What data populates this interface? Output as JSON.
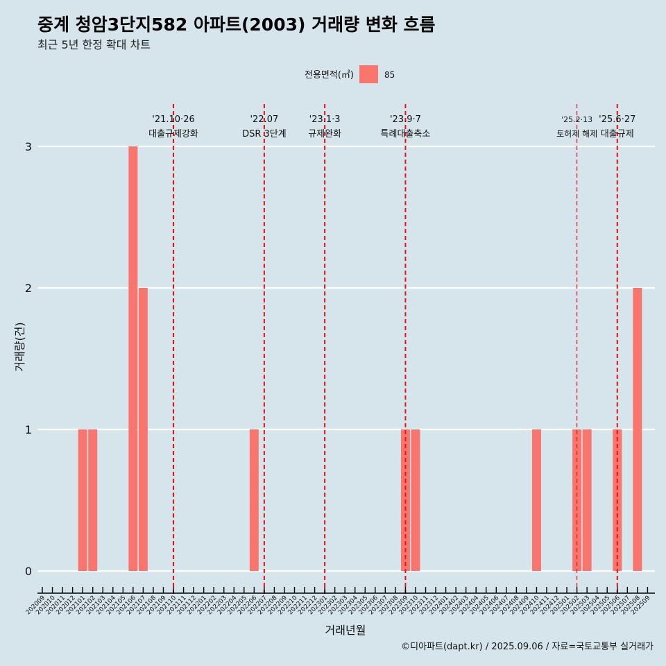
{
  "chart_data": {
    "type": "bar",
    "title": "중계 청암3단지582 아파트(2003) 거래량 변화 흐름",
    "subtitle": "최근 5년 한정 확대 차트",
    "xlabel": "거래년월",
    "ylabel": "거래량(건)",
    "caption": "©디아파트(dapt.kr) / 2025.09.06 / 자료=국토교통부 실거래가",
    "legend": {
      "title": "전용면적(㎡)",
      "entries": [
        {
          "label": "85",
          "color": "#f8766d"
        }
      ],
      "position": "top"
    },
    "ylim": [
      0,
      3
    ],
    "yticks": [
      0,
      1,
      2,
      3
    ],
    "grid": true,
    "categories": [
      "202009",
      "202010",
      "202011",
      "202012",
      "202101",
      "202102",
      "202103",
      "202104",
      "202105",
      "202106",
      "202107",
      "202108",
      "202109",
      "202110",
      "202111",
      "202112",
      "202201",
      "202202",
      "202203",
      "202204",
      "202205",
      "202206",
      "202207",
      "202208",
      "202209",
      "202210",
      "202211",
      "202212",
      "202301",
      "202302",
      "202303",
      "202304",
      "202305",
      "202306",
      "202307",
      "202308",
      "202309",
      "202310",
      "202311",
      "202312",
      "202401",
      "202402",
      "202403",
      "202404",
      "202405",
      "202406",
      "202407",
      "202408",
      "202409",
      "202410",
      "202411",
      "202412",
      "202501",
      "202502",
      "202503",
      "202504",
      "202505",
      "202506",
      "202507",
      "202508",
      "202509"
    ],
    "series": [
      {
        "name": "85",
        "color": "#f8766d",
        "values": [
          0,
          0,
          0,
          0,
          1,
          1,
          0,
          0,
          0,
          3,
          2,
          0,
          0,
          0,
          0,
          0,
          0,
          0,
          0,
          0,
          0,
          1,
          0,
          0,
          0,
          0,
          0,
          0,
          0,
          0,
          0,
          0,
          0,
          0,
          0,
          0,
          1,
          1,
          0,
          0,
          0,
          0,
          0,
          0,
          0,
          0,
          0,
          0,
          0,
          1,
          0,
          0,
          0,
          1,
          1,
          0,
          0,
          1,
          0,
          2,
          0
        ]
      }
    ],
    "annotations": [
      {
        "date": "202110",
        "label1": "'21.10·26",
        "label2": "대출규제강화"
      },
      {
        "date": "202207",
        "label1": "'22.07",
        "label2": "DSR 3단계"
      },
      {
        "date": "202301",
        "label1": "'23.1·3",
        "label2": "규제완화"
      },
      {
        "date": "202309",
        "label1": "'23.9·7",
        "label2": "특례대출축소"
      },
      {
        "date": "202502",
        "label1": "'25.2·13",
        "label2": "토허제 해제"
      },
      {
        "date": "202506",
        "label1": "'25.6·27",
        "label2": "대출규제"
      }
    ]
  }
}
